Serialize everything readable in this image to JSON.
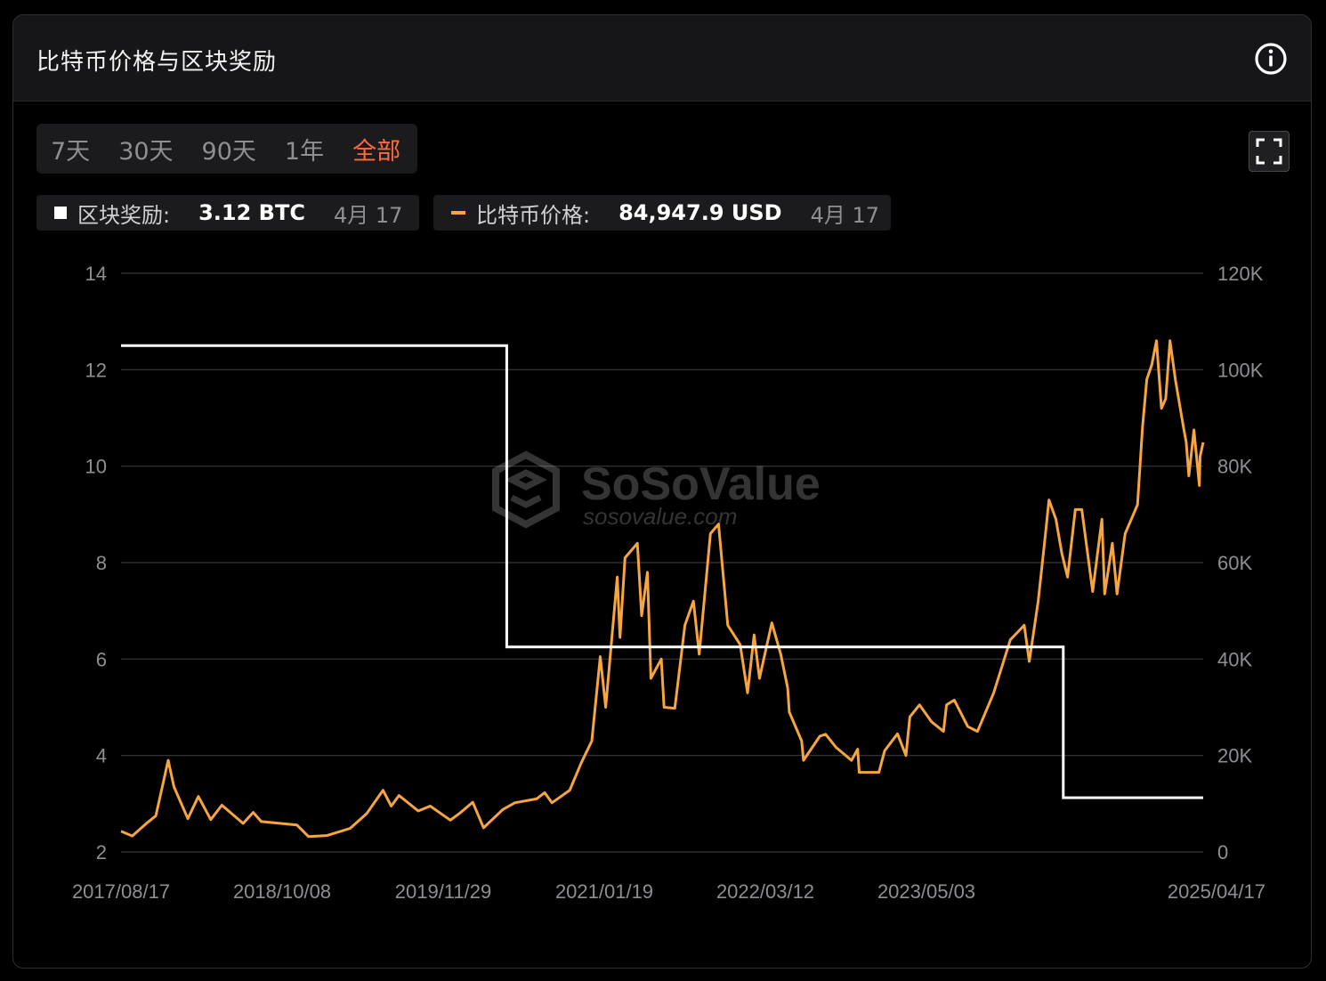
{
  "header": {
    "title": "比特币价格与区块奖励",
    "info_icon": "info-circle-icon"
  },
  "tabs": [
    {
      "label": "7天",
      "active": false
    },
    {
      "label": "30天",
      "active": false
    },
    {
      "label": "90天",
      "active": false
    },
    {
      "label": "1年",
      "active": false
    },
    {
      "label": "全部",
      "active": true
    }
  ],
  "fullscreen_icon": "expand-icon",
  "legend": {
    "reward": {
      "label": "区块奖励:",
      "value": "3.12 BTC",
      "date": "4月 17",
      "color": "#ffffff"
    },
    "price": {
      "label": "比特币价格:",
      "value": "84,947.9 USD",
      "date": "4月 17",
      "color": "#f7a540"
    }
  },
  "watermark": {
    "brand": "SoSoValue",
    "url": "sosovalue.com"
  },
  "colors": {
    "accent": "#ff6a3d",
    "price": "#f7a540",
    "reward": "#ffffff"
  },
  "chart_data": {
    "type": "line",
    "x_range": [
      "2017/08/17",
      "2025/04/17"
    ],
    "x_tick_labels": [
      "2017/08/17",
      "2018/10/08",
      "2019/11/29",
      "2021/01/19",
      "2022/03/12",
      "2023/05/03",
      "2025/04/17"
    ],
    "y_left": {
      "ticks": [
        "14",
        "12",
        "10",
        "8",
        "6",
        "4",
        "2"
      ],
      "range": [
        2,
        14
      ]
    },
    "y_right": {
      "ticks": [
        "120K",
        "100K",
        "80K",
        "60K",
        "40K",
        "20K",
        "0"
      ],
      "range": [
        0,
        120000
      ]
    },
    "grid": true,
    "series": [
      {
        "name": "区块奖励",
        "axis": "left",
        "color": "#ffffff",
        "steps": [
          {
            "from": "2017/08/17",
            "value": 12.5
          },
          {
            "from": "2020/05/11",
            "value": 6.25
          },
          {
            "from": "2024/04/20",
            "value": 3.125
          }
        ]
      },
      {
        "name": "比特币价格",
        "axis": "right",
        "color": "#f7a540",
        "points": [
          [
            "2017/08/17",
            4300
          ],
          [
            "2017/09/15",
            3300
          ],
          [
            "2017/10/20",
            5800
          ],
          [
            "2017/11/15",
            7500
          ],
          [
            "2017/12/17",
            19000
          ],
          [
            "2018/01/01",
            13500
          ],
          [
            "2018/02/06",
            6900
          ],
          [
            "2018/03/05",
            11500
          ],
          [
            "2018/04/06",
            6700
          ],
          [
            "2018/05/05",
            9700
          ],
          [
            "2018/06/29",
            5900
          ],
          [
            "2018/07/25",
            8200
          ],
          [
            "2018/08/15",
            6300
          ],
          [
            "2018/11/15",
            5600
          ],
          [
            "2018/12/15",
            3200
          ],
          [
            "2019/02/01",
            3400
          ],
          [
            "2019/04/02",
            4900
          ],
          [
            "2019/05/15",
            8000
          ],
          [
            "2019/06/26",
            12800
          ],
          [
            "2019/07/17",
            9500
          ],
          [
            "2019/08/06",
            11700
          ],
          [
            "2019/09/25",
            8500
          ],
          [
            "2019/10/26",
            9500
          ],
          [
            "2019/12/17",
            6600
          ],
          [
            "2020/01/10",
            8000
          ],
          [
            "2020/02/13",
            10300
          ],
          [
            "2020/03/12",
            5000
          ],
          [
            "2020/05/01",
            8800
          ],
          [
            "2020/06/01",
            10200
          ],
          [
            "2020/07/27",
            11000
          ],
          [
            "2020/08/17",
            12300
          ],
          [
            "2020/09/05",
            10200
          ],
          [
            "2020/10/21",
            12800
          ],
          [
            "2020/11/20",
            18500
          ],
          [
            "2020/12/17",
            23000
          ],
          [
            "2021/01/08",
            40500
          ],
          [
            "2021/01/22",
            30000
          ],
          [
            "2021/02/21",
            57000
          ],
          [
            "2021/02/28",
            44500
          ],
          [
            "2021/03/13",
            61000
          ],
          [
            "2021/04/14",
            64000
          ],
          [
            "2021/04/25",
            49000
          ],
          [
            "2021/05/10",
            58000
          ],
          [
            "2021/05/19",
            36000
          ],
          [
            "2021/06/15",
            40000
          ],
          [
            "2021/06/22",
            30000
          ],
          [
            "2021/07/20",
            29800
          ],
          [
            "2021/08/15",
            47000
          ],
          [
            "2021/09/06",
            52000
          ],
          [
            "2021/09/21",
            41000
          ],
          [
            "2021/10/20",
            66000
          ],
          [
            "2021/11/10",
            68000
          ],
          [
            "2021/12/04",
            47000
          ],
          [
            "2022/01/05",
            43000
          ],
          [
            "2022/01/24",
            33000
          ],
          [
            "2022/02/10",
            45000
          ],
          [
            "2022/02/24",
            36000
          ],
          [
            "2022/03/28",
            47500
          ],
          [
            "2022/04/20",
            41000
          ],
          [
            "2022/05/08",
            34000
          ],
          [
            "2022/05/12",
            29000
          ],
          [
            "2022/06/13",
            23000
          ],
          [
            "2022/06/18",
            19000
          ],
          [
            "2022/07/30",
            24000
          ],
          [
            "2022/08/14",
            24400
          ],
          [
            "2022/09/10",
            21700
          ],
          [
            "2022/10/20",
            19000
          ],
          [
            "2022/11/05",
            21300
          ],
          [
            "2022/11/09",
            16500
          ],
          [
            "2022/12/30",
            16500
          ],
          [
            "2023/01/14",
            21000
          ],
          [
            "2023/02/16",
            24500
          ],
          [
            "2023/03/10",
            20000
          ],
          [
            "2023/03/20",
            28000
          ],
          [
            "2023/04/14",
            30500
          ],
          [
            "2023/05/15",
            27000
          ],
          [
            "2023/06/15",
            25000
          ],
          [
            "2023/06/23",
            30500
          ],
          [
            "2023/07/13",
            31500
          ],
          [
            "2023/08/17",
            26000
          ],
          [
            "2023/09/11",
            25000
          ],
          [
            "2023/10/23",
            33000
          ],
          [
            "2023/12/05",
            44000
          ],
          [
            "2024/01/10",
            47000
          ],
          [
            "2024/01/23",
            39500
          ],
          [
            "2024/02/15",
            52000
          ],
          [
            "2024/03/05",
            66000
          ],
          [
            "2024/03/14",
            73000
          ],
          [
            "2024/04/01",
            69000
          ],
          [
            "2024/04/16",
            62000
          ],
          [
            "2024/05/01",
            57000
          ],
          [
            "2024/05/21",
            71000
          ],
          [
            "2024/06/07",
            71000
          ],
          [
            "2024/07/05",
            54000
          ],
          [
            "2024/07/29",
            69000
          ],
          [
            "2024/08/05",
            53500
          ],
          [
            "2024/08/25",
            64000
          ],
          [
            "2024/09/06",
            53500
          ],
          [
            "2024/09/27",
            66000
          ],
          [
            "2024/10/29",
            72000
          ],
          [
            "2024/11/11",
            88000
          ],
          [
            "2024/11/22",
            98000
          ],
          [
            "2024/12/05",
            101000
          ],
          [
            "2024/12/17",
            106000
          ],
          [
            "2024/12/30",
            92000
          ],
          [
            "2025/01/10",
            94000
          ],
          [
            "2025/01/21",
            106000
          ],
          [
            "2025/02/04",
            98000
          ],
          [
            "2025/02/25",
            88000
          ],
          [
            "2025/03/04",
            85000
          ],
          [
            "2025/03/11",
            78000
          ],
          [
            "2025/03/24",
            87500
          ],
          [
            "2025/04/07",
            76000
          ],
          [
            "2025/04/09",
            82000
          ],
          [
            "2025/04/17",
            84947.9
          ]
        ]
      }
    ]
  }
}
